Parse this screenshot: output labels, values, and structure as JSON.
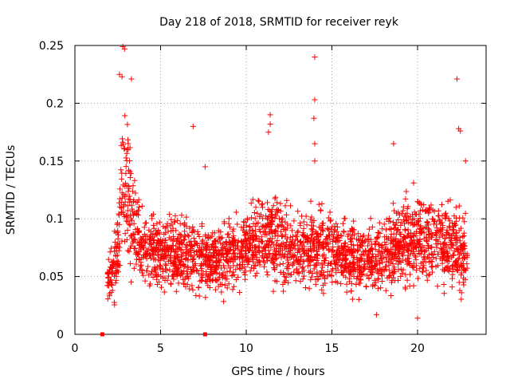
{
  "chart_data": {
    "type": "scatter",
    "title": "Day 218 of 2018, SRMTID for receiver reyk",
    "xlabel": "GPS time / hours",
    "ylabel": "SRMTID / TECUs",
    "xlim": [
      0,
      24
    ],
    "ylim": [
      0,
      0.25
    ],
    "x_ticks": [
      0,
      5,
      10,
      15,
      20
    ],
    "x_tick_labels": [
      "0",
      "5",
      "10",
      "15",
      "20"
    ],
    "y_ticks": [
      0,
      0.05,
      0.1,
      0.15,
      0.2,
      0.25
    ],
    "y_tick_labels": [
      "0",
      "0.05",
      "0.1",
      "0.15",
      "0.2",
      "0.25"
    ],
    "grid": true,
    "marker": "+",
    "series_color": "#ff0000",
    "baseline_markers": [
      1.6,
      7.6
    ],
    "notable_points": [
      {
        "x": 2.8,
        "y": 0.249
      },
      {
        "x": 2.9,
        "y": 0.247
      },
      {
        "x": 2.6,
        "y": 0.225
      },
      {
        "x": 2.75,
        "y": 0.223
      },
      {
        "x": 3.3,
        "y": 0.221
      },
      {
        "x": 6.9,
        "y": 0.18
      },
      {
        "x": 7.6,
        "y": 0.145
      },
      {
        "x": 11.4,
        "y": 0.19
      },
      {
        "x": 11.4,
        "y": 0.182
      },
      {
        "x": 11.3,
        "y": 0.175
      },
      {
        "x": 14.0,
        "y": 0.24
      },
      {
        "x": 14.0,
        "y": 0.203
      },
      {
        "x": 13.95,
        "y": 0.187
      },
      {
        "x": 14.0,
        "y": 0.165
      },
      {
        "x": 14.0,
        "y": 0.15
      },
      {
        "x": 17.6,
        "y": 0.017
      },
      {
        "x": 18.6,
        "y": 0.165
      },
      {
        "x": 20.0,
        "y": 0.014
      },
      {
        "x": 22.3,
        "y": 0.221
      },
      {
        "x": 22.4,
        "y": 0.178
      },
      {
        "x": 22.5,
        "y": 0.176
      },
      {
        "x": 22.8,
        "y": 0.15
      }
    ],
    "envelope": [
      {
        "x": 1.9,
        "mean": 0.048,
        "spread": 0.015
      },
      {
        "x": 2.2,
        "mean": 0.055,
        "spread": 0.018
      },
      {
        "x": 2.5,
        "mean": 0.07,
        "spread": 0.03
      },
      {
        "x": 2.8,
        "mean": 0.13,
        "spread": 0.06
      },
      {
        "x": 3.1,
        "mean": 0.12,
        "spread": 0.05
      },
      {
        "x": 3.5,
        "mean": 0.09,
        "spread": 0.035
      },
      {
        "x": 4.0,
        "mean": 0.075,
        "spread": 0.025
      },
      {
        "x": 5.0,
        "mean": 0.07,
        "spread": 0.025
      },
      {
        "x": 6.0,
        "mean": 0.07,
        "spread": 0.025
      },
      {
        "x": 7.0,
        "mean": 0.07,
        "spread": 0.028
      },
      {
        "x": 8.0,
        "mean": 0.064,
        "spread": 0.022
      },
      {
        "x": 9.0,
        "mean": 0.068,
        "spread": 0.024
      },
      {
        "x": 10.0,
        "mean": 0.075,
        "spread": 0.025
      },
      {
        "x": 10.5,
        "mean": 0.082,
        "spread": 0.03
      },
      {
        "x": 11.5,
        "mean": 0.085,
        "spread": 0.032
      },
      {
        "x": 12.5,
        "mean": 0.075,
        "spread": 0.027
      },
      {
        "x": 13.5,
        "mean": 0.073,
        "spread": 0.026
      },
      {
        "x": 14.5,
        "mean": 0.075,
        "spread": 0.027
      },
      {
        "x": 15.5,
        "mean": 0.07,
        "spread": 0.024
      },
      {
        "x": 16.5,
        "mean": 0.066,
        "spread": 0.023
      },
      {
        "x": 17.5,
        "mean": 0.065,
        "spread": 0.023
      },
      {
        "x": 18.5,
        "mean": 0.073,
        "spread": 0.027
      },
      {
        "x": 19.5,
        "mean": 0.08,
        "spread": 0.03
      },
      {
        "x": 20.5,
        "mean": 0.085,
        "spread": 0.032
      },
      {
        "x": 21.5,
        "mean": 0.078,
        "spread": 0.028
      },
      {
        "x": 22.5,
        "mean": 0.075,
        "spread": 0.03
      },
      {
        "x": 22.9,
        "mean": 0.07,
        "spread": 0.025
      }
    ],
    "bulk_point_count": 2600,
    "x_range_of_points": [
      1.9,
      22.9
    ]
  }
}
